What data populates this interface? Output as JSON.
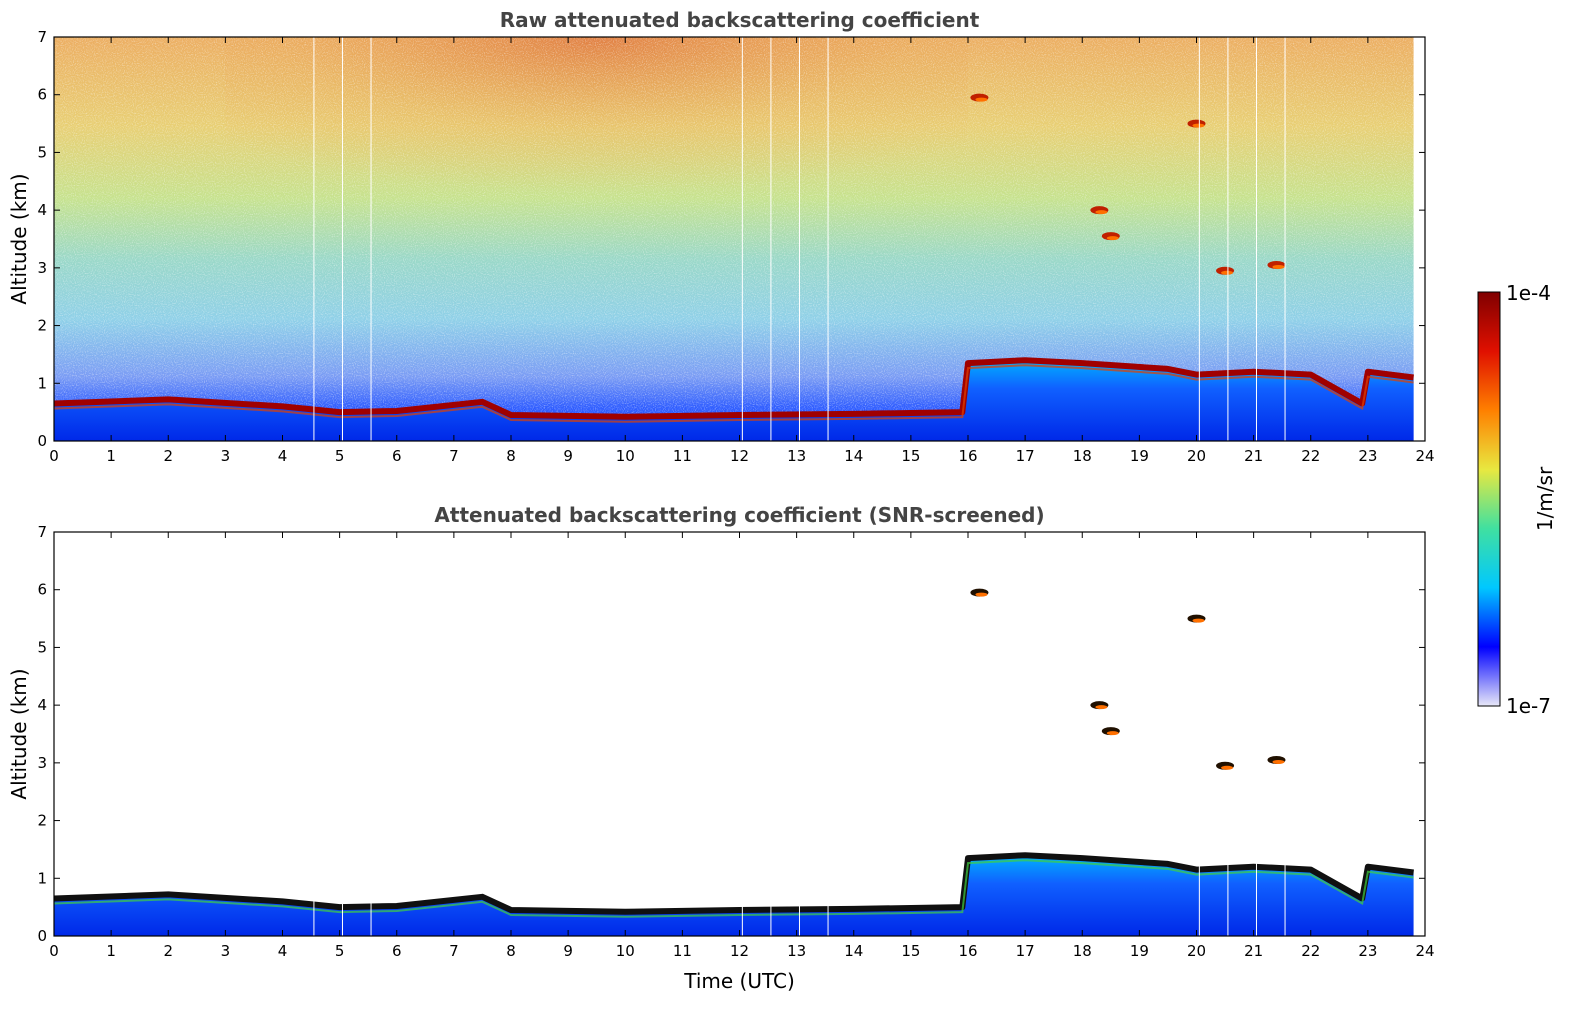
{
  "figure": {
    "colorbar": {
      "max_label": "1e-4",
      "min_label": "1e-7",
      "unit_label": "1/m/sr",
      "colormap": [
        "#e8e8f8",
        "#0000ff",
        "#00c8ff",
        "#40e0a0",
        "#e8e840",
        "#ff8000",
        "#e01000",
        "#800000"
      ]
    }
  },
  "chart_data": [
    {
      "type": "heatmap",
      "title": "Raw attenuated backscattering coefficient",
      "xlabel": "",
      "ylabel": "Altitude (km)",
      "xlim": [
        0,
        24
      ],
      "ylim": [
        0,
        7
      ],
      "xticks": [
        "0",
        "1",
        "2",
        "3",
        "4",
        "5",
        "6",
        "7",
        "8",
        "9",
        "10",
        "11",
        "12",
        "13",
        "14",
        "15",
        "16",
        "17",
        "18",
        "19",
        "20",
        "21",
        "22",
        "23",
        "24"
      ],
      "yticks": [
        "0",
        "1",
        "2",
        "3",
        "4",
        "5",
        "6",
        "7"
      ],
      "boundary_layer_top_km": {
        "time": [
          0,
          2,
          4,
          5,
          6,
          7.5,
          8,
          10,
          12,
          14,
          15.9,
          16,
          17,
          18,
          19.5,
          20,
          21,
          22,
          22.9,
          23,
          23.8
        ],
        "altitude": [
          0.65,
          0.72,
          0.6,
          0.5,
          0.52,
          0.68,
          0.45,
          0.42,
          0.45,
          0.47,
          0.5,
          1.35,
          1.4,
          1.35,
          1.25,
          1.15,
          1.2,
          1.15,
          0.65,
          1.2,
          1.1
        ]
      },
      "cloud_features": [
        {
          "time": 16.2,
          "altitude": 5.95
        },
        {
          "time": 20.0,
          "altitude": 5.5
        },
        {
          "time": 18.3,
          "altitude": 4.0
        },
        {
          "time": 18.5,
          "altitude": 3.55
        },
        {
          "time": 20.5,
          "altitude": 2.95
        },
        {
          "time": 21.4,
          "altitude": 3.05
        }
      ],
      "data_gaps_time": [
        4.55,
        5.05,
        5.55,
        12.05,
        12.55,
        13.05,
        13.55,
        20.05,
        20.55,
        21.05,
        21.55
      ]
    },
    {
      "type": "heatmap",
      "title": "Attenuated backscattering coefficient (SNR-screened)",
      "xlabel": "Time (UTC)",
      "ylabel": "Altitude (km)",
      "xlim": [
        0,
        24
      ],
      "ylim": [
        0,
        7
      ],
      "xticks": [
        "0",
        "1",
        "2",
        "3",
        "4",
        "5",
        "6",
        "7",
        "8",
        "9",
        "10",
        "11",
        "12",
        "13",
        "14",
        "15",
        "16",
        "17",
        "18",
        "19",
        "20",
        "21",
        "22",
        "23",
        "24"
      ],
      "yticks": [
        "0",
        "1",
        "2",
        "3",
        "4",
        "5",
        "6",
        "7"
      ],
      "boundary_layer_top_km": {
        "time": [
          0,
          2,
          4,
          5,
          6,
          7.5,
          8,
          10,
          12,
          14,
          15.9,
          16,
          17,
          18,
          19.5,
          20,
          21,
          22,
          22.9,
          23,
          23.8
        ],
        "altitude": [
          0.65,
          0.72,
          0.6,
          0.5,
          0.52,
          0.68,
          0.45,
          0.42,
          0.45,
          0.47,
          0.5,
          1.35,
          1.4,
          1.35,
          1.25,
          1.15,
          1.2,
          1.15,
          0.65,
          1.2,
          1.1
        ]
      },
      "cloud_features": [
        {
          "time": 16.2,
          "altitude": 5.95
        },
        {
          "time": 20.0,
          "altitude": 5.5
        },
        {
          "time": 18.3,
          "altitude": 4.0
        },
        {
          "time": 18.5,
          "altitude": 3.55
        },
        {
          "time": 20.5,
          "altitude": 2.95
        },
        {
          "time": 21.4,
          "altitude": 3.05
        }
      ],
      "data_gaps_time": [
        4.55,
        5.05,
        5.55,
        12.05,
        12.55,
        13.05,
        13.55,
        20.05,
        20.55,
        21.05,
        21.55
      ]
    }
  ]
}
